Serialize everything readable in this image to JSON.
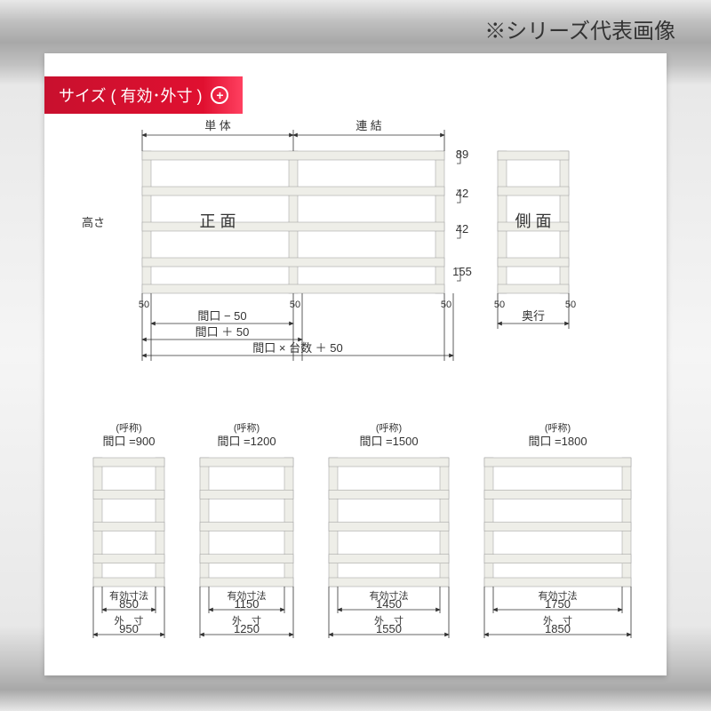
{
  "header_note": "※シリーズ代表画像",
  "size_tab_label": "サイズ ( 有効･外寸 )",
  "colors": {
    "tab_red": "#c8102e",
    "shelf_fill": "#eeeee8",
    "shelf_stroke": "#999999",
    "dim_stroke": "#333333",
    "card_bg": "#ffffff"
  },
  "top_diagram": {
    "height_label": "高さ",
    "sections": [
      {
        "label": "単 体"
      },
      {
        "label": "連 結"
      }
    ],
    "front_label": "正 面",
    "side_label": "側 面",
    "side_depth_label": "奥行",
    "post_width": 50,
    "shelf_gaps": [
      89,
      42,
      42,
      155
    ],
    "bottom_dims": [
      {
        "label": "間口 − 50"
      },
      {
        "label": "間口 ＋ 50"
      },
      {
        "label": "間口 × 台数 ＋ 50"
      }
    ],
    "left_50": "50",
    "mid_50": "50",
    "right_50": "50",
    "side_50_l": "50",
    "side_50_r": "50"
  },
  "bottom_variants": [
    {
      "nominal_label": "(呼称)",
      "opening_label": "間口 =900",
      "eff_label": "有効寸法",
      "eff": "850",
      "out_label": "外　寸",
      "out": "950"
    },
    {
      "nominal_label": "(呼称)",
      "opening_label": "間口 =1200",
      "eff_label": "有効寸法",
      "eff": "1150",
      "out_label": "外　寸",
      "out": "1250"
    },
    {
      "nominal_label": "(呼称)",
      "opening_label": "間口 =1500",
      "eff_label": "有効寸法",
      "eff": "1450",
      "out_label": "外　寸",
      "out": "1550"
    },
    {
      "nominal_label": "(呼称)",
      "opening_label": "間口 =1800",
      "eff_label": "有効寸法",
      "eff": "1750",
      "out_label": "外　寸",
      "out": "1850"
    }
  ]
}
